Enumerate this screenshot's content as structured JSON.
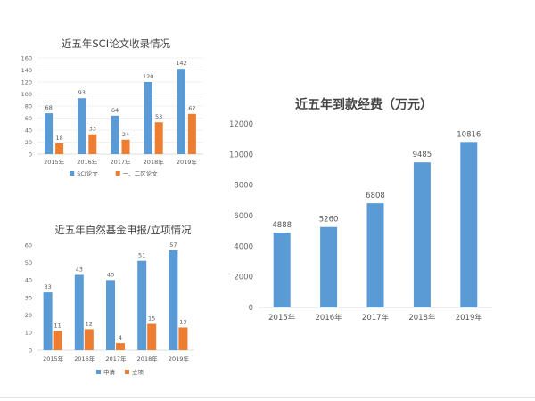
{
  "chart_data": [
    {
      "type": "bar",
      "title": "近五年SCI论文收录情况",
      "categories": [
        "2015年",
        "2016年",
        "2017年",
        "2018年",
        "2019年"
      ],
      "series": [
        {
          "name": "SCI论文",
          "values": [
            68,
            93,
            64,
            120,
            142
          ],
          "color": "#5b9bd5"
        },
        {
          "name": "一、二区论文",
          "values": [
            18,
            33,
            24,
            53,
            67
          ],
          "color": "#ed7d31"
        }
      ],
      "ylim": [
        0,
        160
      ],
      "yticks": [
        0,
        20,
        40,
        60,
        80,
        100,
        120,
        140,
        160
      ],
      "grid": true,
      "legend": "bottom"
    },
    {
      "type": "bar",
      "title": "近五年自然基金申报/立项情况",
      "categories": [
        "2015年",
        "2016年",
        "2017年",
        "2018年",
        "2019年"
      ],
      "series": [
        {
          "name": "申请",
          "values": [
            33,
            43,
            40,
            51,
            57
          ],
          "color": "#5b9bd5"
        },
        {
          "name": "立项",
          "values": [
            11,
            12,
            4,
            15,
            13
          ],
          "color": "#ed7d31"
        }
      ],
      "ylim": [
        0,
        60
      ],
      "yticks": [
        0,
        10,
        20,
        30,
        40,
        50,
        60
      ],
      "grid": false,
      "legend": "bottom"
    },
    {
      "type": "bar",
      "title": "近五年到款经费（万元）",
      "categories": [
        "2015年",
        "2016年",
        "2017年",
        "2018年",
        "2019年"
      ],
      "series": [
        {
          "values": [
            4888,
            5260,
            6808,
            9485,
            10816
          ],
          "color": "#5b9bd5"
        }
      ],
      "ylim": [
        0,
        12000
      ],
      "yticks": [
        0,
        2000,
        4000,
        6000,
        8000,
        10000,
        12000
      ],
      "grid": false,
      "legend": "none"
    }
  ]
}
